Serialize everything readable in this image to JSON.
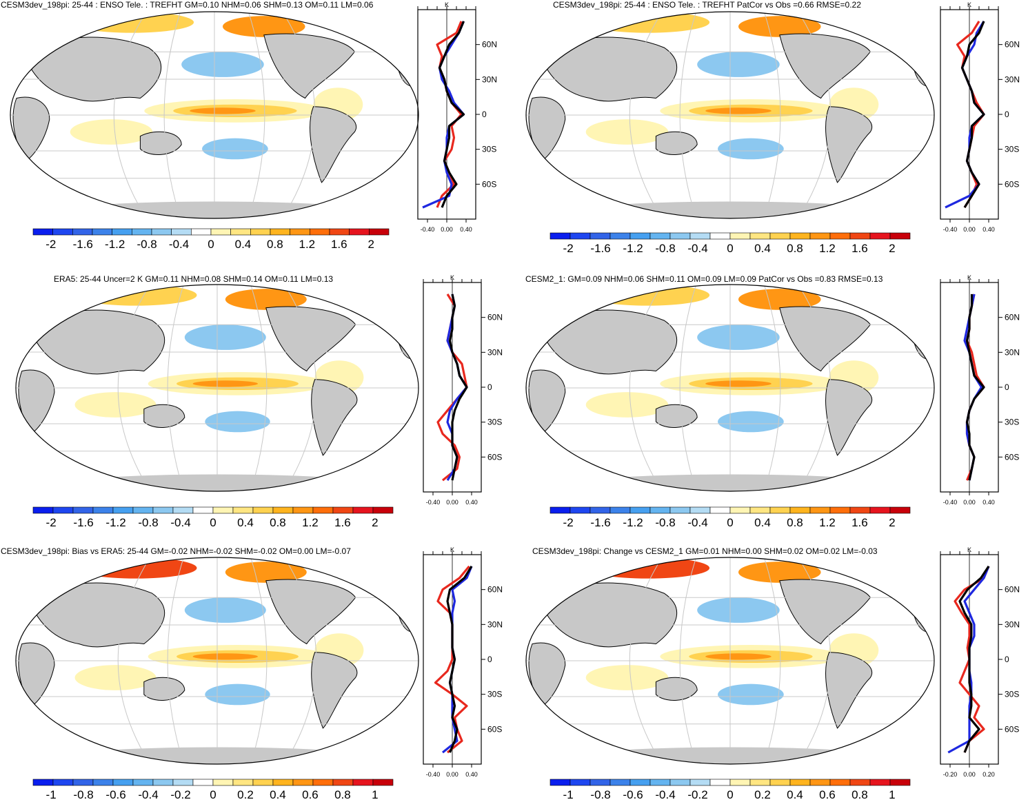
{
  "colors": {
    "land": "#c8c8c8",
    "grid": "#c8c8c8",
    "line_red": "#e8281e",
    "line_blue": "#1e28e0",
    "line_black": "#000000",
    "palette": [
      "#0a1eee",
      "#1e46f0",
      "#3264e8",
      "#3c82ea",
      "#46a0f0",
      "#64b4f0",
      "#8cc8f0",
      "#b4dcf4",
      "#ffffff",
      "#fff5b4",
      "#ffe682",
      "#ffd250",
      "#ffb41e",
      "#ff9614",
      "#ff6e0a",
      "#f04614",
      "#e6141e",
      "#c8000a"
    ]
  },
  "panels": [
    {
      "title": "CESM3dev_198pi: 25-44 : ENSO Tele. : TREFHT GM=0.10 NHM=0.06 SHM=0.13 OM=0.11 LM=0.06",
      "colorbar_labels": [
        "-2",
        "-1.6",
        "-1.2",
        "-0.8",
        "-0.4",
        "0",
        "0.4",
        "0.8",
        "1.2",
        "1.6",
        "2"
      ],
      "profile": {
        "unit": "K",
        "lat_labels": [
          "60N",
          "30N",
          "0",
          "30S",
          "60S"
        ],
        "x_ticks": [
          "-0.40",
          "0.00",
          "0.40"
        ]
      }
    },
    {
      "title": "CESM3dev_198pi: 25-44 : ENSO Tele. : TREFHT PatCor vs Obs =0.66 RMSE=0.22",
      "colorbar_labels": [
        "-2",
        "-1.6",
        "-1.2",
        "-0.8",
        "-0.4",
        "0",
        "0.4",
        "0.8",
        "1.2",
        "1.6",
        "2"
      ],
      "profile": {
        "unit": "K",
        "lat_labels": [
          "60N",
          "30N",
          "0",
          "30S",
          "60S"
        ],
        "x_ticks": [
          "-0.40",
          "0.00",
          "0.40"
        ]
      }
    },
    {
      "title": "ERA5: 25-44 Uncer=2 K GM=0.11 NHM=0.08 SHM=0.14 OM=0.11 LM=0.13",
      "colorbar_labels": [
        "-2",
        "-1.6",
        "-1.2",
        "-0.8",
        "-0.4",
        "0",
        "0.4",
        "0.8",
        "1.2",
        "1.6",
        "2"
      ],
      "profile": {
        "unit": "K",
        "lat_labels": [
          "60N",
          "30N",
          "0",
          "30S",
          "60S"
        ],
        "x_ticks": [
          "-0.40",
          "0.00",
          "0.40"
        ]
      }
    },
    {
      "title": "CESM2_1: GM=0.09 NHM=0.06 SHM=0.11 OM=0.09 LM=0.09 PatCor vs Obs =0.83 RMSE=0.13",
      "colorbar_labels": [
        "-2",
        "-1.6",
        "-1.2",
        "-0.8",
        "-0.4",
        "0",
        "0.4",
        "0.8",
        "1.2",
        "1.6",
        "2"
      ],
      "profile": {
        "unit": "K",
        "lat_labels": [
          "60N",
          "30N",
          "0",
          "30S",
          "60S"
        ],
        "x_ticks": [
          "-0.40",
          "0.00",
          "0.40"
        ]
      }
    },
    {
      "title": "CESM3dev_198pi: Bias vs ERA5: 25-44 GM=-0.02 NHM=-0.02 SHM=-0.02 OM=0.00 LM=-0.07",
      "colorbar_labels": [
        "-1",
        "-0.8",
        "-0.6",
        "-0.4",
        "-0.2",
        "0",
        "0.2",
        "0.4",
        "0.6",
        "0.8",
        "1"
      ],
      "profile": {
        "unit": "K",
        "lat_labels": [
          "60N",
          "30N",
          "0",
          "30S",
          "60S"
        ],
        "x_ticks": [
          "-0.40",
          "0.00",
          "0.40"
        ]
      }
    },
    {
      "title": "CESM3dev_198pi: Change vs CESM2_1 GM=0.01 NHM=0.00 SHM=0.02 OM=0.02 LM=-0.03",
      "colorbar_labels": [
        "-1",
        "-0.8",
        "-0.6",
        "-0.4",
        "-0.2",
        "0",
        "0.2",
        "0.4",
        "0.6",
        "0.8",
        "1"
      ],
      "profile": {
        "unit": "K",
        "lat_labels": [
          "60N",
          "30N",
          "0",
          "30S",
          "60S"
        ],
        "x_ticks": [
          "-0.20",
          "0.00",
          "0.20"
        ]
      }
    }
  ],
  "chart_data": [
    {
      "type": "line",
      "title": "CESM3dev_198pi: 25-44 : ENSO Tele. : TREFHT GM=0.10 NHM=0.06 SHM=0.13 OM=0.11 LM=0.06",
      "xlabel": "K",
      "xlim": [
        -0.6,
        0.6
      ],
      "ylim": [
        -90,
        90
      ],
      "y": [
        -80,
        -70,
        -60,
        -50,
        -40,
        -30,
        -20,
        -10,
        0,
        10,
        20,
        30,
        40,
        50,
        60,
        70,
        80
      ],
      "series": [
        {
          "color": "#e8281e",
          "values": [
            -0.2,
            -0.1,
            0.15,
            0.05,
            -0.05,
            0.1,
            0.15,
            0.1,
            0.3,
            0.1,
            0.0,
            -0.05,
            -0.15,
            -0.1,
            -0.2,
            0.2,
            0.3
          ]
        },
        {
          "color": "#1e28e0",
          "values": [
            -0.5,
            0.05,
            0.1,
            0.0,
            -0.05,
            0.0,
            0.0,
            0.05,
            0.35,
            0.15,
            0.05,
            -0.1,
            -0.15,
            -0.05,
            0.1,
            0.25,
            0.35
          ]
        },
        {
          "color": "#000000",
          "values": [
            -0.1,
            0.0,
            0.2,
            0.05,
            -0.05,
            0.0,
            0.05,
            0.05,
            0.35,
            0.1,
            0.0,
            -0.05,
            -0.15,
            -0.05,
            0.05,
            0.25,
            0.35
          ]
        }
      ]
    },
    {
      "type": "line",
      "title": "CESM3dev_198pi: 25-44 : ENSO Tele. : TREFHT PatCor vs Obs =0.66 RMSE=0.22",
      "xlabel": "K",
      "xlim": [
        -0.6,
        0.6
      ],
      "ylim": [
        -90,
        90
      ],
      "y": [
        -80,
        -70,
        -60,
        -50,
        -40,
        -30,
        -20,
        -10,
        0,
        10,
        20,
        30,
        40,
        50,
        60,
        70,
        80
      ],
      "series": [
        {
          "color": "#e8281e",
          "values": [
            -0.1,
            0.05,
            0.15,
            0.05,
            -0.05,
            0.0,
            0.05,
            0.1,
            0.3,
            0.15,
            0.05,
            -0.05,
            -0.15,
            -0.1,
            -0.25,
            0.05,
            0.2
          ]
        },
        {
          "color": "#1e28e0",
          "values": [
            -0.5,
            0.0,
            0.2,
            0.05,
            -0.05,
            0.0,
            0.0,
            0.05,
            0.3,
            0.1,
            0.05,
            -0.05,
            -0.15,
            -0.05,
            0.1,
            0.15,
            0.3
          ]
        },
        {
          "color": "#000000",
          "values": [
            -0.1,
            0.05,
            0.2,
            0.05,
            -0.05,
            0.0,
            0.05,
            0.05,
            0.3,
            0.1,
            0.05,
            -0.05,
            -0.15,
            -0.05,
            0.0,
            0.2,
            0.3
          ]
        }
      ]
    },
    {
      "type": "line",
      "title": "ERA5: 25-44 Uncer=2 K GM=0.11 NHM=0.08 SHM=0.14 OM=0.11 LM=0.13",
      "xlabel": "K",
      "xlim": [
        -0.6,
        0.6
      ],
      "ylim": [
        -90,
        90
      ],
      "y": [
        -80,
        -70,
        -60,
        -50,
        -40,
        -30,
        -20,
        -10,
        0,
        10,
        20,
        30,
        40,
        50,
        60,
        70,
        80
      ],
      "series": [
        {
          "color": "#e8281e",
          "values": [
            -0.2,
            0.1,
            0.15,
            0.05,
            -0.2,
            -0.3,
            -0.1,
            0.1,
            0.3,
            0.25,
            0.2,
            0.0,
            -0.1,
            -0.05,
            0.0,
            0.05,
            -0.1
          ]
        },
        {
          "color": "#1e28e0",
          "values": [
            -0.1,
            0.05,
            0.1,
            0.0,
            0.0,
            -0.1,
            -0.05,
            0.1,
            0.3,
            0.15,
            0.1,
            0.0,
            -0.1,
            -0.05,
            0.0,
            0.05,
            0.0
          ]
        },
        {
          "color": "#000000",
          "values": [
            0.0,
            0.05,
            0.1,
            0.0,
            0.0,
            0.0,
            0.05,
            0.15,
            0.3,
            0.15,
            0.1,
            0.0,
            -0.05,
            0.0,
            0.0,
            0.05,
            0.0
          ]
        }
      ]
    },
    {
      "type": "line",
      "title": "CESM2_1: GM=0.09 NHM=0.06 SHM=0.11 OM=0.09 LM=0.09 PatCor vs Obs =0.83 RMSE=0.13",
      "xlabel": "K",
      "xlim": [
        -0.6,
        0.6
      ],
      "ylim": [
        -90,
        90
      ],
      "y": [
        -80,
        -70,
        -60,
        -50,
        -40,
        -30,
        -20,
        -10,
        0,
        10,
        20,
        30,
        40,
        50,
        60,
        70,
        80
      ],
      "series": [
        {
          "color": "#e8281e",
          "values": [
            -0.05,
            0.05,
            0.1,
            0.0,
            -0.05,
            -0.05,
            0.0,
            0.1,
            0.3,
            0.15,
            0.1,
            0.05,
            -0.05,
            0.0,
            0.0,
            0.05,
            0.1
          ]
        },
        {
          "color": "#1e28e0",
          "values": [
            0.0,
            0.05,
            0.1,
            0.0,
            -0.05,
            -0.05,
            0.0,
            0.1,
            0.25,
            0.1,
            0.05,
            0.0,
            -0.1,
            -0.05,
            0.0,
            0.05,
            0.1
          ]
        },
        {
          "color": "#000000",
          "values": [
            0.0,
            0.05,
            0.1,
            0.0,
            0.0,
            -0.05,
            0.0,
            0.1,
            0.3,
            0.1,
            0.05,
            0.0,
            -0.05,
            0.0,
            0.0,
            0.05,
            0.05
          ]
        }
      ]
    },
    {
      "type": "line",
      "title": "CESM3dev_198pi: Bias vs ERA5: 25-44 GM=-0.02 NHM=-0.02 SHM=-0.02 OM=0.00 LM=-0.07",
      "xlabel": "K",
      "xlim": [
        -0.6,
        0.6
      ],
      "ylim": [
        -90,
        90
      ],
      "y": [
        -80,
        -70,
        -60,
        -50,
        -40,
        -30,
        -20,
        -10,
        0,
        10,
        20,
        30,
        40,
        50,
        60,
        70,
        80
      ],
      "series": [
        {
          "color": "#e8281e",
          "values": [
            -0.1,
            0.2,
            0.1,
            0.05,
            0.3,
            0.0,
            -0.35,
            -0.1,
            0.0,
            0.0,
            0.0,
            0.0,
            -0.05,
            -0.3,
            -0.2,
            0.15,
            0.35
          ]
        },
        {
          "color": "#1e28e0",
          "values": [
            -0.2,
            0.1,
            0.05,
            0.0,
            0.0,
            0.0,
            -0.05,
            0.0,
            0.05,
            0.0,
            0.0,
            0.0,
            0.0,
            0.05,
            0.0,
            0.3,
            0.4
          ]
        },
        {
          "color": "#000000",
          "values": [
            -0.05,
            0.05,
            0.1,
            0.0,
            0.05,
            0.0,
            -0.05,
            0.0,
            0.05,
            0.0,
            0.0,
            0.0,
            -0.05,
            -0.1,
            -0.05,
            0.25,
            0.4
          ]
        }
      ]
    },
    {
      "type": "line",
      "title": "CESM3dev_198pi: Change vs CESM2_1 GM=0.01 NHM=0.00 SHM=0.02 OM=0.02 LM=-0.03",
      "xlabel": "K",
      "xlim": [
        -0.3,
        0.3
      ],
      "ylim": [
        -90,
        90
      ],
      "y": [
        -80,
        -70,
        -60,
        -50,
        -40,
        -30,
        -20,
        -10,
        0,
        10,
        20,
        30,
        40,
        50,
        60,
        70,
        80
      ],
      "series": [
        {
          "color": "#e8281e",
          "values": [
            -0.05,
            0.0,
            0.15,
            0.05,
            0.1,
            0.0,
            -0.1,
            -0.05,
            0.0,
            -0.02,
            0.0,
            0.0,
            -0.08,
            -0.15,
            -0.05,
            0.15,
            0.2
          ]
        },
        {
          "color": "#1e28e0",
          "values": [
            -0.22,
            0.0,
            0.0,
            0.0,
            0.0,
            0.02,
            0.02,
            0.0,
            0.0,
            0.0,
            0.05,
            0.05,
            0.0,
            -0.05,
            0.05,
            0.15,
            0.2
          ]
        },
        {
          "color": "#000000",
          "values": [
            -0.05,
            0.0,
            0.1,
            0.0,
            0.02,
            0.02,
            0.0,
            0.0,
            0.0,
            0.0,
            0.02,
            0.02,
            -0.05,
            -0.1,
            -0.02,
            0.12,
            0.2
          ]
        }
      ]
    }
  ]
}
